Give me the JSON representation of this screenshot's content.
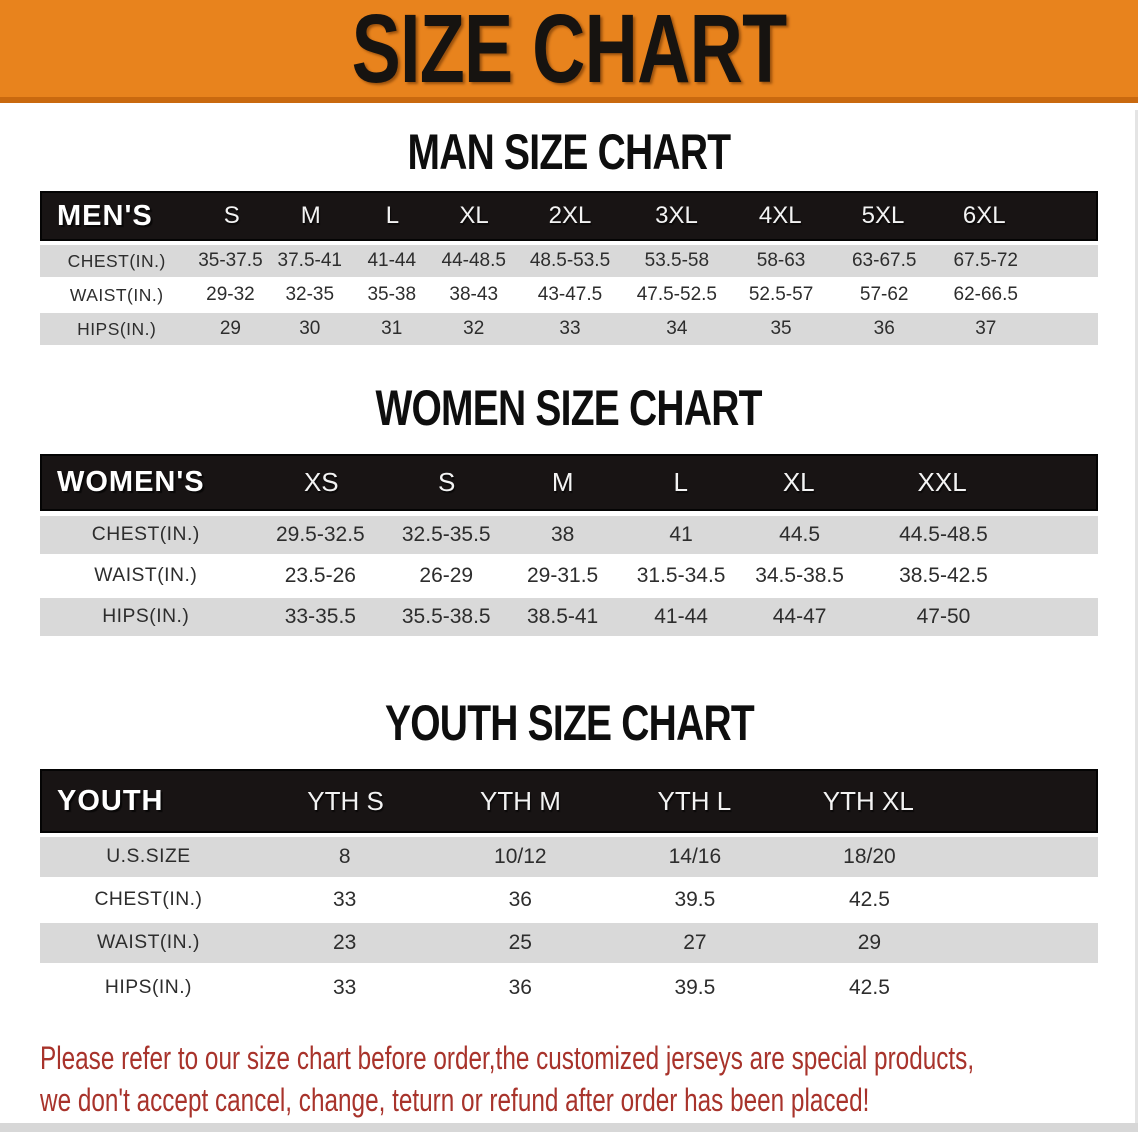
{
  "banner": {
    "title": "SIZE CHART"
  },
  "men": {
    "heading": "MAN SIZE CHART",
    "header_label": "MEN'S",
    "columns": [
      "S",
      "M",
      "L",
      "XL",
      "2XL",
      "3XL",
      "4XL",
      "5XL",
      "6XL"
    ],
    "rows": [
      {
        "label": "CHEST(IN.)",
        "values": [
          "35-37.5",
          "37.5-41",
          "41-44",
          "44-48.5",
          "48.5-53.5",
          "53.5-58",
          "58-63",
          "63-67.5",
          "67.5-72"
        ]
      },
      {
        "label": "WAIST(IN.)",
        "values": [
          "29-32",
          "32-35",
          "35-38",
          "38-43",
          "43-47.5",
          "47.5-52.5",
          "52.5-57",
          "57-62",
          "62-66.5"
        ]
      },
      {
        "label": "HIPS(IN.)",
        "values": [
          "29",
          "30",
          "31",
          "32",
          "33",
          "34",
          "35",
          "36",
          "37"
        ]
      }
    ]
  },
  "women": {
    "heading": "WOMEN SIZE CHART",
    "header_label": "WOMEN'S",
    "columns": [
      "XS",
      "S",
      "M",
      "L",
      "XL",
      "XXL"
    ],
    "rows": [
      {
        "label": "CHEST(IN.)",
        "values": [
          "29.5-32.5",
          "32.5-35.5",
          "38",
          "41",
          "44.5",
          "44.5-48.5"
        ]
      },
      {
        "label": "WAIST(IN.)",
        "values": [
          "23.5-26",
          "26-29",
          "29-31.5",
          "31.5-34.5",
          "34.5-38.5",
          "38.5-42.5"
        ]
      },
      {
        "label": "HIPS(IN.)",
        "values": [
          "33-35.5",
          "35.5-38.5",
          "38.5-41",
          "41-44",
          "44-47",
          "47-50"
        ]
      }
    ]
  },
  "youth": {
    "heading": "YOUTH SIZE CHART",
    "header_label": "YOUTH",
    "columns": [
      "YTH S",
      "YTH M",
      "YTH L",
      "YTH XL"
    ],
    "rows": [
      {
        "label": "U.S.SIZE",
        "values": [
          "8",
          "10/12",
          "14/16",
          "18/20"
        ]
      },
      {
        "label": "CHEST(IN.)",
        "values": [
          "33",
          "36",
          "39.5",
          "42.5"
        ]
      },
      {
        "label": "WAIST(IN.)",
        "values": [
          "23",
          "25",
          "27",
          "29"
        ]
      },
      {
        "label": "HIPS(IN.)",
        "values": [
          "33",
          "36",
          "39.5",
          "42.5"
        ]
      }
    ]
  },
  "disclaimer": {
    "line1": "Please refer to our size chart before order,the customized jerseys are special products,",
    "line2": "we don't accept cancel, change, teturn or refund after order has been placed!"
  },
  "colors": {
    "banner_bg": "#E8831D",
    "banner_edge": "#C9690F",
    "header_bar_bg": "#181414",
    "row_gray": "#D9D9D9",
    "disclaimer_red": "#A8332B",
    "heading_text": "#0E0E0E"
  }
}
